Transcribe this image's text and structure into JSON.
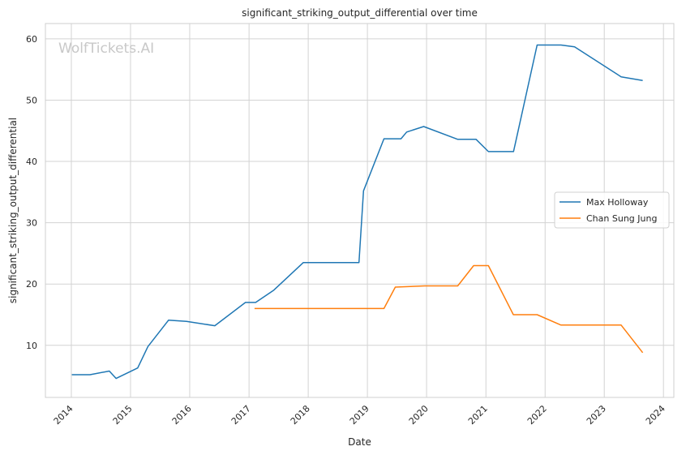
{
  "chart_data": {
    "type": "line",
    "title": "significant_striking_output_differential over time",
    "xlabel": "Date",
    "ylabel": "significant_striking_output_differential",
    "watermark": "WolfTickets.AI",
    "xlim": [
      "2013-07-25",
      "2024-03-05"
    ],
    "ylim": [
      1.5,
      62.5
    ],
    "x_ticks": [
      "2014",
      "2015",
      "2016",
      "2017",
      "2018",
      "2019",
      "2020",
      "2021",
      "2022",
      "2023",
      "2024"
    ],
    "y_ticks": [
      10,
      20,
      30,
      40,
      50,
      60
    ],
    "grid": true,
    "legend_position": "center-right",
    "series": [
      {
        "name": "Max Holloway",
        "color": "#1f77b4",
        "x": [
          "2014-01-04",
          "2014-04-26",
          "2014-08-23",
          "2014-10-04",
          "2015-02-14",
          "2015-04-18",
          "2015-08-23",
          "2015-12-12",
          "2016-06-04",
          "2016-12-10",
          "2017-02-11",
          "2017-06-03",
          "2017-12-02",
          "2018-11-10",
          "2018-12-08",
          "2019-04-13",
          "2019-07-27",
          "2019-08-31",
          "2019-12-14",
          "2020-07-11",
          "2020-11-01",
          "2021-01-16",
          "2021-06-20",
          "2021-11-13",
          "2022-04-09",
          "2022-07-02",
          "2023-04-15",
          "2023-08-26"
        ],
        "values": [
          5.2,
          5.2,
          5.8,
          4.6,
          6.3,
          9.8,
          14.1,
          13.9,
          13.2,
          17.0,
          17.0,
          19.0,
          23.5,
          23.5,
          35.2,
          43.7,
          43.7,
          44.8,
          45.7,
          43.6,
          43.6,
          41.6,
          41.6,
          59.0,
          59.0,
          58.7,
          53.8,
          53.2
        ]
      },
      {
        "name": "Chan Sung Jung",
        "color": "#ff7f0e",
        "x": [
          "2017-02-04",
          "2017-12-23",
          "2019-04-13",
          "2019-06-22",
          "2019-12-21",
          "2020-07-11",
          "2020-10-17",
          "2021-01-16",
          "2021-06-19",
          "2021-11-13",
          "2022-04-09",
          "2022-07-02",
          "2023-04-15",
          "2023-08-26"
        ],
        "values": [
          16.0,
          16.0,
          16.0,
          19.5,
          19.7,
          19.7,
          23.0,
          23.0,
          15.0,
          15.0,
          13.3,
          13.3,
          13.3,
          8.8
        ]
      }
    ]
  }
}
